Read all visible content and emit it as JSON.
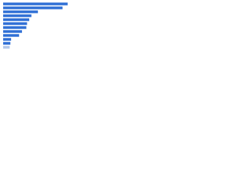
{
  "chart_data": {
    "type": "bar",
    "orientation": "horizontal",
    "categories": [
      null,
      null,
      null,
      null,
      null,
      null,
      null,
      null,
      null,
      null,
      null,
      null
    ],
    "values": [
      89,
      82,
      48,
      39,
      36,
      33,
      32,
      26,
      22,
      11,
      10,
      9
    ],
    "colors": [
      "#2e6ed5",
      "#2e6ed5",
      "#2e6ed5",
      "#2e6ed5",
      "#2e6ed5",
      "#2e6ed5",
      "#2e6ed5",
      "#2e6ed5",
      "#2e6ed5",
      "#2e6ed5",
      "#2e6ed5",
      "#b3c8ea"
    ],
    "xlim": [
      0,
      100
    ]
  }
}
